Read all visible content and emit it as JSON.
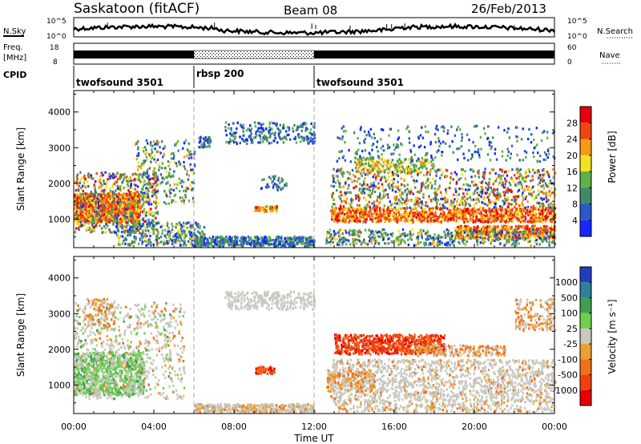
{
  "header": {
    "title": "Saskatoon (fitACF)",
    "beam": "Beam 08",
    "date": "26/Feb/2013"
  },
  "noise_panel": {
    "left_label": "N.Sky",
    "right_label": "N.Search",
    "left_ticks": [
      "10^5",
      "10^0"
    ],
    "right_ticks": [
      "10^5",
      "10^0"
    ]
  },
  "freq_panel": {
    "left_label_1": "Freq.",
    "left_label_2": "[MHz]",
    "right_label": "Nave",
    "left_ticks": [
      "18",
      "8"
    ],
    "right_ticks": [
      "60",
      "0"
    ]
  },
  "cpid": {
    "label": "CPID",
    "segments": [
      {
        "name": "twofsound 3501",
        "start_hour": 0,
        "end_hour": 6
      },
      {
        "name": "rbsp 200",
        "start_hour": 6,
        "end_hour": 12
      },
      {
        "name": "twofsound 3501",
        "start_hour": 12,
        "end_hour": 24
      }
    ]
  },
  "x_axis": {
    "label": "Time UT",
    "ticks": [
      "00:00",
      "04:00",
      "08:00",
      "12:00",
      "16:00",
      "20:00",
      "00:00"
    ]
  },
  "chart_data": [
    {
      "type": "heatmap",
      "ylabel": "Slant Range [km]",
      "y_ticks": [
        "1000",
        "2000",
        "3000",
        "4000"
      ],
      "ylim": [
        200,
        4600
      ],
      "xlim_hours": [
        0,
        24
      ],
      "colorbar": {
        "label": "Power [dB]",
        "ticks": [
          "4",
          "8",
          "12",
          "16",
          "20",
          "24",
          "28"
        ],
        "colors": [
          "#1428ff",
          "#2a58c8",
          "#3f8a6a",
          "#5fb045",
          "#f2e21e",
          "#f59a12",
          "#f0460e",
          "#e6000a"
        ]
      }
    },
    {
      "type": "heatmap",
      "ylabel": "Slant Range [km]",
      "y_ticks": [
        "1000",
        "2000",
        "3000",
        "4000"
      ],
      "ylim": [
        200,
        4600
      ],
      "xlim_hours": [
        0,
        24
      ],
      "colorbar": {
        "label": "Velocity [m s⁻¹]",
        "ticks": [
          "1000",
          "500",
          "100",
          "25",
          "-25",
          "-100",
          "-500",
          "-1000"
        ],
        "colors": [
          "#1f3fbf",
          "#2f7f9f",
          "#3f9f4f",
          "#6fd04f",
          "#c8c8c0",
          "#e8a030",
          "#f07018",
          "#f04010",
          "#e80000"
        ]
      }
    }
  ]
}
